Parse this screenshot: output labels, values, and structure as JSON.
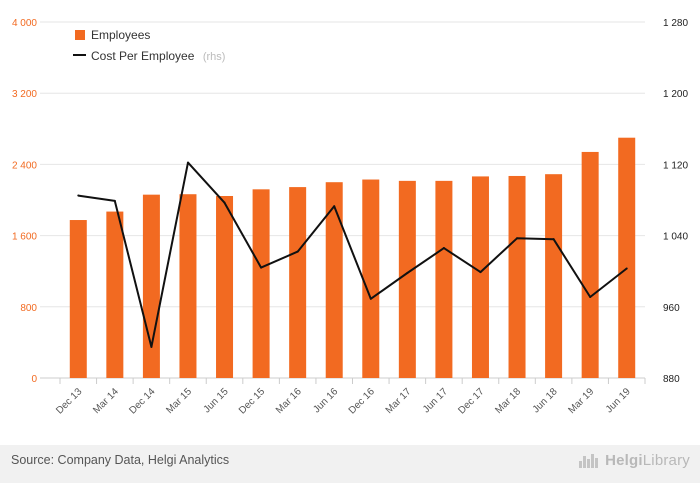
{
  "chart_data": {
    "type": "bar+line",
    "categories": [
      "Dec 13",
      "Mar 14",
      "Dec 14",
      "Mar 15",
      "Jun 15",
      "Dec 15",
      "Mar 16",
      "Jun 16",
      "Dec 16",
      "Mar 17",
      "Jun 17",
      "Dec 17",
      "Mar 18",
      "Jun 18",
      "Mar 19",
      "Jun 19"
    ],
    "series": [
      {
        "name": "Employees",
        "type": "bar",
        "axis": "left",
        "color": "#f26a21",
        "values": [
          1775,
          1870,
          2060,
          2065,
          2045,
          2120,
          2145,
          2200,
          2230,
          2215,
          2215,
          2265,
          2270,
          2290,
          2540,
          2700
        ]
      },
      {
        "name": "Cost Per Employee",
        "type": "line",
        "axis": "right",
        "color": "#111111",
        "values": [
          1085,
          1079,
          915,
          1122,
          1077,
          1004,
          1022,
          1073,
          969,
          998,
          1026,
          999,
          1037,
          1036,
          971,
          1003
        ]
      }
    ],
    "left_axis": {
      "min": 0,
      "max": 4000,
      "ticks": [
        "0",
        "800",
        "1 600",
        "2 400",
        "3 200",
        "4 000"
      ]
    },
    "right_axis": {
      "min": 880,
      "max": 1280,
      "ticks": [
        "880",
        "960",
        "1 040",
        "1 120",
        "1 200",
        "1 280"
      ]
    },
    "legend": {
      "position": "top-left",
      "items": [
        {
          "label": "Employees",
          "suffix": ""
        },
        {
          "label": "Cost Per Employee",
          "suffix": "(rhs)"
        }
      ]
    },
    "grid": "horizontal"
  },
  "footer": {
    "source": "Source: Company Data, Helgi Analytics",
    "brand_part1": "Helgi",
    "brand_part2": "Library",
    "brand_icon": "helgi-library-logo-icon"
  }
}
